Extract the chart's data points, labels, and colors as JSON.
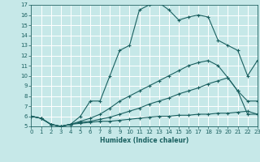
{
  "xlabel": "Humidex (Indice chaleur)",
  "bg_color": "#c6e8e8",
  "grid_color": "#ffffff",
  "line_color": "#1a6060",
  "xlim": [
    0,
    23
  ],
  "ylim": [
    5,
    17
  ],
  "xticks": [
    0,
    1,
    2,
    3,
    4,
    5,
    6,
    7,
    8,
    9,
    10,
    11,
    12,
    13,
    14,
    15,
    16,
    17,
    18,
    19,
    20,
    21,
    22,
    23
  ],
  "yticks": [
    5,
    6,
    7,
    8,
    9,
    10,
    11,
    12,
    13,
    14,
    15,
    16,
    17
  ],
  "lines": [
    {
      "x": [
        0,
        1,
        2,
        3,
        4,
        5,
        6,
        7,
        8,
        9,
        10,
        11,
        12,
        13,
        14,
        15,
        16,
        17,
        18,
        19,
        20,
        21,
        22,
        23
      ],
      "y": [
        6.0,
        5.8,
        5.2,
        5.0,
        5.2,
        6.0,
        7.5,
        7.5,
        10.0,
        12.5,
        13.0,
        16.5,
        17.0,
        17.2,
        16.5,
        15.5,
        15.8,
        16.0,
        15.8,
        13.5,
        13.0,
        12.5,
        10.0,
        11.5
      ]
    },
    {
      "x": [
        0,
        1,
        2,
        3,
        4,
        5,
        6,
        7,
        8,
        9,
        10,
        11,
        12,
        13,
        14,
        15,
        16,
        17,
        18,
        19,
        20,
        21,
        22,
        23
      ],
      "y": [
        6.0,
        5.8,
        5.2,
        5.0,
        5.2,
        5.5,
        5.8,
        6.2,
        6.8,
        7.5,
        8.0,
        8.5,
        9.0,
        9.5,
        10.0,
        10.5,
        11.0,
        11.3,
        11.5,
        11.0,
        9.8,
        8.5,
        7.5,
        7.5
      ]
    },
    {
      "x": [
        0,
        1,
        2,
        3,
        4,
        5,
        6,
        7,
        8,
        9,
        10,
        11,
        12,
        13,
        14,
        15,
        16,
        17,
        18,
        19,
        20,
        21,
        22,
        23
      ],
      "y": [
        6.0,
        5.8,
        5.2,
        5.0,
        5.2,
        5.4,
        5.5,
        5.7,
        5.9,
        6.2,
        6.5,
        6.8,
        7.2,
        7.5,
        7.8,
        8.2,
        8.5,
        8.8,
        9.2,
        9.5,
        9.8,
        8.5,
        6.2,
        6.2
      ]
    },
    {
      "x": [
        0,
        1,
        2,
        3,
        4,
        5,
        6,
        7,
        8,
        9,
        10,
        11,
        12,
        13,
        14,
        15,
        16,
        17,
        18,
        19,
        20,
        21,
        22,
        23
      ],
      "y": [
        6.0,
        5.8,
        5.2,
        5.0,
        5.2,
        5.3,
        5.4,
        5.5,
        5.5,
        5.6,
        5.7,
        5.8,
        5.9,
        6.0,
        6.0,
        6.1,
        6.1,
        6.2,
        6.2,
        6.3,
        6.3,
        6.4,
        6.5,
        6.2
      ]
    }
  ]
}
